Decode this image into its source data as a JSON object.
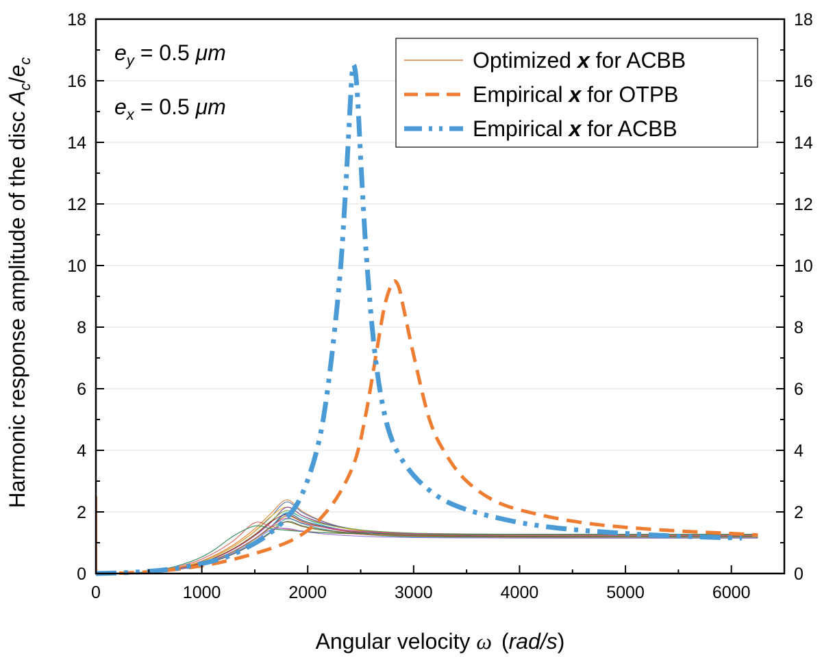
{
  "chart_data": {
    "type": "line",
    "xlabel_main": "Angular velocity ",
    "xlabel_symbol": "ω",
    "xlabel_unit": "rad/s",
    "ylabel_main": "Harmonic response amplitude of the disc ",
    "ylabel_a": "A",
    "ylabel_e": "e",
    "ylabel_sub": "c",
    "ylabel_slash": "/",
    "xlim": [
      0,
      6500
    ],
    "ylim": [
      0,
      18
    ],
    "xticks": [
      0,
      1000,
      2000,
      3000,
      4000,
      5000,
      6000
    ],
    "xtick_labels": [
      "0",
      "1000",
      "2000",
      "3000",
      "4000",
      "5000",
      "6000"
    ],
    "yticks": [
      0,
      2,
      4,
      6,
      8,
      10,
      12,
      14,
      16,
      18
    ],
    "ytick_labels": [
      "0",
      "2",
      "4",
      "6",
      "8",
      "10",
      "12",
      "14",
      "16",
      "18"
    ],
    "grid": "horizontal",
    "legend_position": "top-right",
    "annotations": [
      {
        "var": "e",
        "sub": "y",
        "eq": " = 0.5 ",
        "unit": "μm"
      },
      {
        "var": "e",
        "sub": "x",
        "eq": " = 0.5 ",
        "unit": "μm"
      }
    ],
    "legend": [
      {
        "pre": "Optimized ",
        "bold": "x",
        "post": " for ACBB",
        "style": "thin",
        "color": "#e07b39"
      },
      {
        "pre": "Empirical ",
        "bold": "x",
        "post": " for OTPB",
        "style": "dashed",
        "color": "#ee7d31"
      },
      {
        "pre": "Empirical ",
        "bold": "x",
        "post": " for ACBB",
        "style": "dashdotdot",
        "color": "#4a9ad6"
      }
    ],
    "thin_colors": [
      "#e07b39",
      "#4c72b0",
      "#f2b01e",
      "#7e3fa0",
      "#6fa83c",
      "#47b8d8",
      "#b22c2c",
      "#2b5f9e",
      "#a6761d",
      "#c850a8",
      "#3aa8a0",
      "#8c8c2a",
      "#5a5a5a",
      "#e06060",
      "#2e8b57",
      "#9370db",
      "#d2691e",
      "#4682b4",
      "#9acd32",
      "#708090"
    ],
    "series": [
      {
        "name": "Empirical x for OTPB",
        "style": "dashed",
        "color": "#ee7d31",
        "x": [
          0,
          300,
          600,
          900,
          1200,
          1500,
          1800,
          2000,
          2150,
          2300,
          2450,
          2550,
          2650,
          2720,
          2780,
          2820,
          2860,
          2900,
          3000,
          3150,
          3300,
          3500,
          3800,
          4200,
          4600,
          5000,
          5500,
          6000,
          6250
        ],
        "y": [
          0,
          0.02,
          0.08,
          0.2,
          0.38,
          0.65,
          1.0,
          1.4,
          1.9,
          2.6,
          3.7,
          5.2,
          7.2,
          8.6,
          9.3,
          9.5,
          9.3,
          8.7,
          7.1,
          5.0,
          3.9,
          3.0,
          2.3,
          1.9,
          1.65,
          1.5,
          1.38,
          1.3,
          1.25
        ]
      },
      {
        "name": "Empirical x for ACBB",
        "style": "dashdotdot",
        "color": "#4a9ad6",
        "x": [
          0,
          300,
          600,
          900,
          1200,
          1400,
          1600,
          1800,
          1950,
          2100,
          2200,
          2300,
          2350,
          2390,
          2420,
          2445,
          2470,
          2500,
          2550,
          2620,
          2700,
          2800,
          2950,
          3150,
          3400,
          3800,
          4300,
          5000,
          5600,
          6100
        ],
        "y": [
          0,
          0.03,
          0.1,
          0.25,
          0.5,
          0.8,
          1.2,
          1.8,
          2.6,
          4.2,
          6.3,
          9.5,
          12.0,
          14.5,
          16.3,
          16.4,
          15.5,
          13.5,
          10.5,
          7.6,
          5.6,
          4.3,
          3.4,
          2.7,
          2.2,
          1.8,
          1.5,
          1.3,
          1.2,
          1.15
        ]
      },
      {
        "name": "Optimized x for ACBB",
        "style": "thin",
        "group": true,
        "x": [
          0,
          300,
          600,
          900,
          1100,
          1300,
          1500,
          1650,
          1800,
          1950,
          2100,
          2300,
          2600,
          3000,
          3500,
          4000,
          4500,
          5000,
          5500,
          6000,
          6250
        ],
        "curves": [
          {
            "peak": 2.45,
            "peak_x": 1780
          },
          {
            "peak": 2.35,
            "peak_x": 1790
          },
          {
            "peak": 2.25,
            "peak_x": 1760
          },
          {
            "peak": 2.15,
            "peak_x": 1800
          },
          {
            "peak": 2.1,
            "peak_x": 1770
          },
          {
            "peak": 2.05,
            "peak_x": 1820
          },
          {
            "peak": 2.0,
            "peak_x": 1750
          },
          {
            "peak": 1.95,
            "peak_x": 1800
          },
          {
            "peak": 1.9,
            "peak_x": 1780
          },
          {
            "peak": 1.85,
            "peak_x": 1760
          },
          {
            "peak": 1.8,
            "peak_x": 1810
          },
          {
            "peak": 1.75,
            "peak_x": 1740
          },
          {
            "peak": 1.7,
            "peak_x": 1790
          },
          {
            "peak": 1.65,
            "peak_x": 1500
          },
          {
            "peak": 1.6,
            "peak_x": 1420
          },
          {
            "peak": 1.55,
            "peak_x": 1700
          }
        ]
      }
    ]
  }
}
